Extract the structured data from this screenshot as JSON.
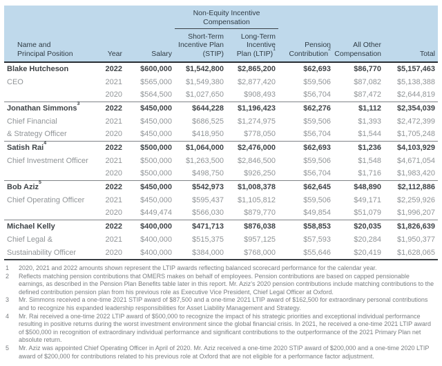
{
  "colors": {
    "header_background": "#bfd9eb",
    "header_text": "#2f3b44",
    "primary_row_text": "#3f4448",
    "secondary_row_text": "#909497",
    "rule_dark": "#272c31",
    "rule_group": "#7e8286",
    "footnote_text": "#7a7e81"
  },
  "header": {
    "group_header": {
      "line1": "Non-Equity Incentive",
      "line2": "Compensation"
    },
    "columns": [
      {
        "lines": [
          "Name and",
          "Principal Position"
        ]
      },
      {
        "lines": [
          "Year"
        ]
      },
      {
        "lines": [
          "Salary"
        ]
      },
      {
        "lines": [
          "Short-Term",
          "Incentive Plan",
          "(STIP)"
        ]
      },
      {
        "lines": [
          "Long-Term",
          "Incentive",
          "Plan (LTIP)"
        ],
        "sup": "1"
      },
      {
        "lines": [
          "Pension",
          "Contribution"
        ],
        "sup": "2"
      },
      {
        "lines": [
          "All Other",
          "Compensation"
        ]
      },
      {
        "lines": [
          "Total"
        ]
      }
    ]
  },
  "table": {
    "groups": [
      {
        "name": "Blake Hutcheson",
        "name_sup": "",
        "position_lines": [
          "CEO",
          ""
        ],
        "rows": [
          {
            "year": "2022",
            "salary": "$600,000",
            "stip": "$1,542,800",
            "ltip": "$2,865,200",
            "pension": "$62,693",
            "other": "$86,770",
            "total": "$5,157,463"
          },
          {
            "year": "2021",
            "salary": "$565,000",
            "stip": "$1,549,380",
            "ltip": "$2,877,420",
            "pension": "$59,506",
            "other": "$87,082",
            "total": "$5,138,388"
          },
          {
            "year": "2020",
            "salary": "$564,500",
            "stip": "$1,027,650",
            "ltip": "$908,493",
            "pension": "$56,704",
            "other": "$87,472",
            "total": "$2,644,819"
          }
        ]
      },
      {
        "name": "Jonathan Simmons",
        "name_sup": "3",
        "position_lines": [
          "Chief Financial",
          "& Strategy Officer"
        ],
        "rows": [
          {
            "year": "2022",
            "salary": "$450,000",
            "stip": "$644,228",
            "ltip": "$1,196,423",
            "pension": "$62,276",
            "other": "$1,112",
            "total": "$2,354,039"
          },
          {
            "year": "2021",
            "salary": "$450,000",
            "stip": "$686,525",
            "ltip": "$1,274,975",
            "pension": "$59,506",
            "other": "$1,393",
            "total": "$2,472,399"
          },
          {
            "year": "2020",
            "salary": "$450,000",
            "stip": "$418,950",
            "ltip": "$778,050",
            "pension": "$56,704",
            "other": "$1,544",
            "total": "$1,705,248"
          }
        ]
      },
      {
        "name": "Satish Rai",
        "name_sup": "4",
        "position_lines": [
          "Chief Investment Officer",
          ""
        ],
        "rows": [
          {
            "year": "2022",
            "salary": "$500,000",
            "stip": "$1,064,000",
            "ltip": "$2,476,000",
            "pension": "$62,693",
            "other": "$1,236",
            "total": "$4,103,929"
          },
          {
            "year": "2021",
            "salary": "$500,000",
            "stip": "$1,263,500",
            "ltip": "$2,846,500",
            "pension": "$59,506",
            "other": "$1,548",
            "total": "$4,671,054"
          },
          {
            "year": "2020",
            "salary": "$500,000",
            "stip": "$498,750",
            "ltip": "$926,250",
            "pension": "$56,704",
            "other": "$1,716",
            "total": "$1,983,420"
          }
        ]
      },
      {
        "name": "Bob Aziz",
        "name_sup": "5",
        "position_lines": [
          "Chief Operating Officer",
          ""
        ],
        "rows": [
          {
            "year": "2022",
            "salary": "$450,000",
            "stip": "$542,973",
            "ltip": "$1,008,378",
            "pension": "$62,645",
            "other": "$48,890",
            "total": "$2,112,886"
          },
          {
            "year": "2021",
            "salary": "$450,000",
            "stip": "$595,437",
            "ltip": "$1,105,812",
            "pension": "$59,506",
            "other": "$49,171",
            "total": "$2,259,926"
          },
          {
            "year": "2020",
            "salary": "$449,474",
            "stip": "$566,030",
            "ltip": "$879,770",
            "pension": "$49,854",
            "other": "$51,079",
            "total": "$1,996,207"
          }
        ]
      },
      {
        "name": "Michael Kelly",
        "name_sup": "",
        "position_lines": [
          "Chief Legal &",
          "Sustainability Officer"
        ],
        "rows": [
          {
            "year": "2022",
            "salary": "$400,000",
            "stip": "$471,713",
            "ltip": "$876,038",
            "pension": "$58,853",
            "other": "$20,035",
            "total": "$1,826,639"
          },
          {
            "year": "2021",
            "salary": "$400,000",
            "stip": "$515,375",
            "ltip": "$957,125",
            "pension": "$57,593",
            "other": "$20,284",
            "total": "$1,950,377"
          },
          {
            "year": "2020",
            "salary": "$400,000",
            "stip": "$384,000",
            "ltip": "$768,000",
            "pension": "$55,646",
            "other": "$20,419",
            "total": "$1,628,065"
          }
        ]
      }
    ]
  },
  "footnotes": [
    {
      "num": "1",
      "text": "2020, 2021 and 2022 amounts shown represent the LTIP awards reflecting balanced scorecard performance for the calendar year."
    },
    {
      "num": "2",
      "text": "Reflects matching pension contributions that OMERS makes on behalf of employees. Pension contributions are based on capped pensionable earnings, as described in the Pension Plan Benefits table later in this report. Mr. Aziz’s 2020 pension contributions include matching contributions to the defined contribution pension plan from his previous role as Executive Vice President, Chief Legal Officer at Oxford."
    },
    {
      "num": "3",
      "text": "Mr. Simmons received a one-time 2021 STIP award of $87,500 and a one-time 2021 LTIP award of $162,500 for extraordinary personal contributions and to recognize his expanded leadership responsibilities for Asset Liability Management and Strategy."
    },
    {
      "num": "4",
      "text": "Mr. Rai received a one-time 2022 LTIP award of $500,000 to recognize the impact of his strategic priorities and exceptional individual performance resulting in positive returns during the worst investment environment since the global financial crisis. In 2021, he received a one-time 2021 LTIP award of $500,000 in recognition of extraordinary individual performance and significant contributions to the outperformance of the 2021 Primary Plan net absolute return."
    },
    {
      "num": "5",
      "text": "Mr. Aziz was appointed Chief Operating Officer in April of 2020. Mr. Aziz received a one-time 2020 STIP award of $200,000 and a one-time 2020 LTIP award of $200,000 for contributions related to his previous role at Oxford that are not eligible for a performance factor adjustment."
    }
  ]
}
